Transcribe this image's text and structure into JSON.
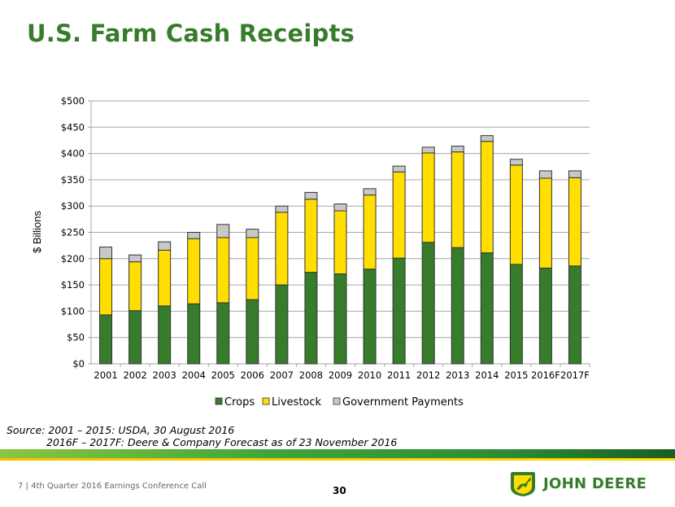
{
  "slide": {
    "title": "U.S. Farm Cash Receipts",
    "source_line1": "Source: 2001 – 2015: USDA, 30 August 2016",
    "source_line2": "2016F – 2017F: Deere & Company Forecast as of 23 November 2016",
    "footer": "7   |  4th Quarter 2016 Earnings Conference Call",
    "page_number": "30",
    "logo_text": "JOHN DEERE"
  },
  "chart_data": {
    "type": "bar",
    "stacked": true,
    "title": "",
    "xlabel": "",
    "ylabel": "$ Billions",
    "ylim": [
      0,
      500
    ],
    "yticks": [
      0,
      50,
      100,
      150,
      200,
      250,
      300,
      350,
      400,
      450,
      500
    ],
    "ytick_labels": [
      "$0",
      "$50",
      "$100",
      "$150",
      "$200",
      "$250",
      "$300",
      "$350",
      "$400",
      "$450",
      "$500"
    ],
    "grid": true,
    "legend": "bottom",
    "categories": [
      "2001",
      "2002",
      "2003",
      "2004",
      "2005",
      "2006",
      "2007",
      "2008",
      "2009",
      "2010",
      "2011",
      "2012",
      "2013",
      "2014",
      "2015",
      "2016F",
      "2017F"
    ],
    "series": [
      {
        "name": "Crops",
        "color": "#367c2b",
        "values": [
          93,
          101,
          110,
          114,
          116,
          122,
          150,
          174,
          171,
          180,
          201,
          231,
          221,
          211,
          189,
          182,
          186
        ]
      },
      {
        "name": "Livestock",
        "color": "#ffde00",
        "values": [
          107,
          93,
          106,
          124,
          124,
          118,
          138,
          139,
          120,
          141,
          164,
          170,
          182,
          212,
          189,
          171,
          168
        ]
      },
      {
        "name": "Government Payments",
        "color": "#c8c8c8",
        "values": [
          22,
          13,
          16,
          12,
          25,
          16,
          12,
          13,
          13,
          12,
          11,
          11,
          11,
          11,
          11,
          14,
          13
        ]
      }
    ]
  }
}
